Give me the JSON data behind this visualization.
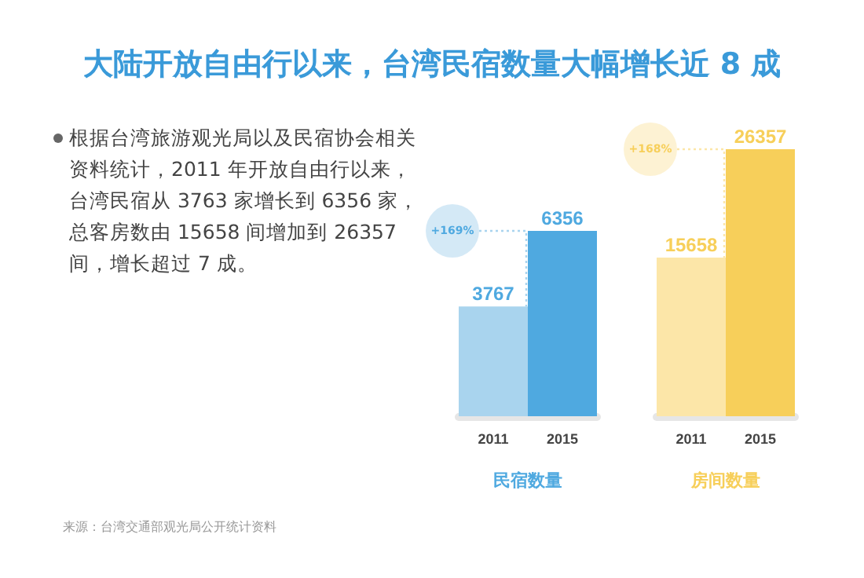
{
  "chart_data": [
    {
      "type": "other",
      "title": "大陆开放自由行以来，台湾民宿数量大幅增长近 8 成",
      "annotations": [
        "根据台湾旅游观光局以及民宿协会相关资料统计，2011 年开放自由行以来，台湾民宿从 3763 家增长到 6356 家，总客房数由 15658 间增加到 26357 间，增长超过 7 成。",
        "来源：台湾交通部观光局公开统计资料"
      ]
    },
    {
      "type": "bar",
      "xlabel": "民宿数量",
      "categories": [
        "2011",
        "2015"
      ],
      "values": [
        3767,
        6356
      ],
      "colors": [
        "#a9d4ee",
        "#4fa9e0"
      ],
      "data_labels": true,
      "annotations": [
        "+169%"
      ]
    },
    {
      "type": "bar",
      "xlabel": "房间数量",
      "categories": [
        "2011",
        "2015"
      ],
      "values": [
        15658,
        26357
      ],
      "colors": [
        "#fce6a8",
        "#f7cf5a"
      ],
      "data_labels": true,
      "annotations": [
        "+168%"
      ]
    }
  ]
}
